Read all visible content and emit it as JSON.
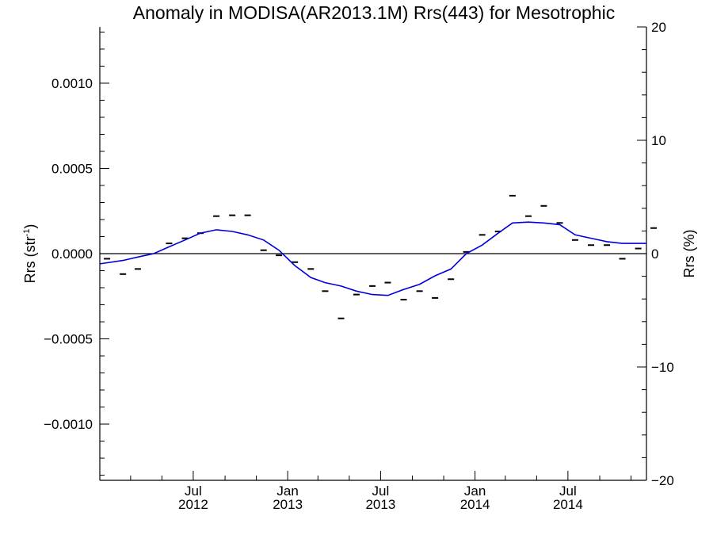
{
  "chart_data": {
    "type": "line",
    "title": "Anomaly in MODISA(AR2013.1M) Rrs(443) for Mesotrophic",
    "ylabel_left": "Rrs (str",
    "ylabel_left_sup": "-1",
    "ylabel_left_close": ")",
    "ylabel_right": "Rrs (%)",
    "xlim": [
      "2012-01-01",
      "2014-12-01"
    ],
    "ylim": [
      -0.00133,
      0.00133
    ],
    "ylim_right": [
      -20,
      20
    ],
    "y_ticks": [
      {
        "value": 0.001,
        "label": "0.0010"
      },
      {
        "value": 0.0005,
        "label": "0.0005"
      },
      {
        "value": 0.0,
        "label": "0.0000"
      },
      {
        "value": -0.0005,
        "label": "−0.0005"
      },
      {
        "value": -0.001,
        "label": "−0.0010"
      }
    ],
    "y_ticks_right": [
      {
        "value": 20,
        "label": "20"
      },
      {
        "value": 10,
        "label": "10"
      },
      {
        "value": 0,
        "label": "0"
      },
      {
        "value": -10,
        "label": "−10"
      },
      {
        "value": -20,
        "label": "−20"
      }
    ],
    "x_ticks": [
      {
        "date": "2012-07-01",
        "label": "Jul",
        "sublabel": "2012"
      },
      {
        "date": "2013-01-01",
        "label": "Jan",
        "sublabel": "2013"
      },
      {
        "date": "2013-07-01",
        "label": "Jul",
        "sublabel": "2013"
      },
      {
        "date": "2014-01-01",
        "label": "Jan",
        "sublabel": "2014"
      },
      {
        "date": "2014-07-01",
        "label": "Jul",
        "sublabel": "2014"
      }
    ],
    "zero_line": 0,
    "colors": {
      "smooth": "#0000dd",
      "monthly": "#000000",
      "axis": "#000000"
    },
    "series": [
      {
        "style": "dash-markers",
        "points": [
          {
            "date": "2012-01-15",
            "y": -3e-05
          },
          {
            "date": "2012-02-15",
            "y": -0.00012
          },
          {
            "date": "2012-03-15",
            "y": -9e-05
          },
          {
            "date": "2012-05-15",
            "y": 6e-05
          },
          {
            "date": "2012-06-15",
            "y": 9e-05
          },
          {
            "date": "2012-07-15",
            "y": 0.00012
          },
          {
            "date": "2012-08-15",
            "y": 0.00022
          },
          {
            "date": "2012-09-15",
            "y": 0.000225
          },
          {
            "date": "2012-10-15",
            "y": 0.000225
          },
          {
            "date": "2012-11-15",
            "y": 2e-05
          },
          {
            "date": "2012-12-15",
            "y": -1e-05
          },
          {
            "date": "2013-01-15",
            "y": -5e-05
          },
          {
            "date": "2013-02-15",
            "y": -9e-05
          },
          {
            "date": "2013-03-15",
            "y": -0.00022
          },
          {
            "date": "2013-04-15",
            "y": -0.00038
          },
          {
            "date": "2013-05-15",
            "y": -0.00024
          },
          {
            "date": "2013-06-15",
            "y": -0.00019
          },
          {
            "date": "2013-07-15",
            "y": -0.00017
          },
          {
            "date": "2013-08-15",
            "y": -0.00027
          },
          {
            "date": "2013-09-15",
            "y": -0.00022
          },
          {
            "date": "2013-10-15",
            "y": -0.00026
          },
          {
            "date": "2013-11-15",
            "y": -0.00015
          },
          {
            "date": "2013-12-15",
            "y": 1e-05
          },
          {
            "date": "2014-01-15",
            "y": 0.00011
          },
          {
            "date": "2014-02-15",
            "y": 0.00013
          },
          {
            "date": "2014-03-15",
            "y": 0.00034
          },
          {
            "date": "2014-04-15",
            "y": 0.00022
          },
          {
            "date": "2014-05-15",
            "y": 0.00028
          },
          {
            "date": "2014-06-15",
            "y": 0.00018
          },
          {
            "date": "2014-07-15",
            "y": 8e-05
          },
          {
            "date": "2014-08-15",
            "y": 5e-05
          },
          {
            "date": "2014-09-15",
            "y": 5e-05
          },
          {
            "date": "2014-10-15",
            "y": -3e-05
          },
          {
            "date": "2014-11-15",
            "y": 3e-05
          },
          {
            "date": "2014-12-15",
            "y": 0.00015
          }
        ]
      },
      {
        "style": "smooth-line",
        "points": [
          {
            "date": "2012-01-01",
            "y": -6e-05
          },
          {
            "date": "2012-02-15",
            "y": -4e-05
          },
          {
            "date": "2012-03-15",
            "y": -2e-05
          },
          {
            "date": "2012-04-15",
            "y": 0.0
          },
          {
            "date": "2012-05-15",
            "y": 4e-05
          },
          {
            "date": "2012-06-15",
            "y": 8e-05
          },
          {
            "date": "2012-07-15",
            "y": 0.00012
          },
          {
            "date": "2012-08-15",
            "y": 0.00014
          },
          {
            "date": "2012-09-15",
            "y": 0.00013
          },
          {
            "date": "2012-10-15",
            "y": 0.00011
          },
          {
            "date": "2012-11-15",
            "y": 8e-05
          },
          {
            "date": "2012-12-15",
            "y": 2e-05
          },
          {
            "date": "2013-01-15",
            "y": -7e-05
          },
          {
            "date": "2013-02-15",
            "y": -0.00014
          },
          {
            "date": "2013-03-15",
            "y": -0.00017
          },
          {
            "date": "2013-04-15",
            "y": -0.00019
          },
          {
            "date": "2013-05-15",
            "y": -0.00022
          },
          {
            "date": "2013-06-15",
            "y": -0.00024
          },
          {
            "date": "2013-07-15",
            "y": -0.000245
          },
          {
            "date": "2013-08-15",
            "y": -0.00021
          },
          {
            "date": "2013-09-15",
            "y": -0.00018
          },
          {
            "date": "2013-10-15",
            "y": -0.00013
          },
          {
            "date": "2013-11-15",
            "y": -9e-05
          },
          {
            "date": "2013-12-15",
            "y": 0.0
          },
          {
            "date": "2014-01-15",
            "y": 5e-05
          },
          {
            "date": "2014-02-15",
            "y": 0.00012
          },
          {
            "date": "2014-03-15",
            "y": 0.00018
          },
          {
            "date": "2014-04-15",
            "y": 0.000185
          },
          {
            "date": "2014-05-15",
            "y": 0.00018
          },
          {
            "date": "2014-06-15",
            "y": 0.00017
          },
          {
            "date": "2014-07-15",
            "y": 0.00011
          },
          {
            "date": "2014-08-15",
            "y": 9e-05
          },
          {
            "date": "2014-09-15",
            "y": 7e-05
          },
          {
            "date": "2014-10-15",
            "y": 6e-05
          },
          {
            "date": "2014-11-15",
            "y": 6e-05
          },
          {
            "date": "2014-12-01",
            "y": 6e-05
          }
        ]
      }
    ]
  }
}
